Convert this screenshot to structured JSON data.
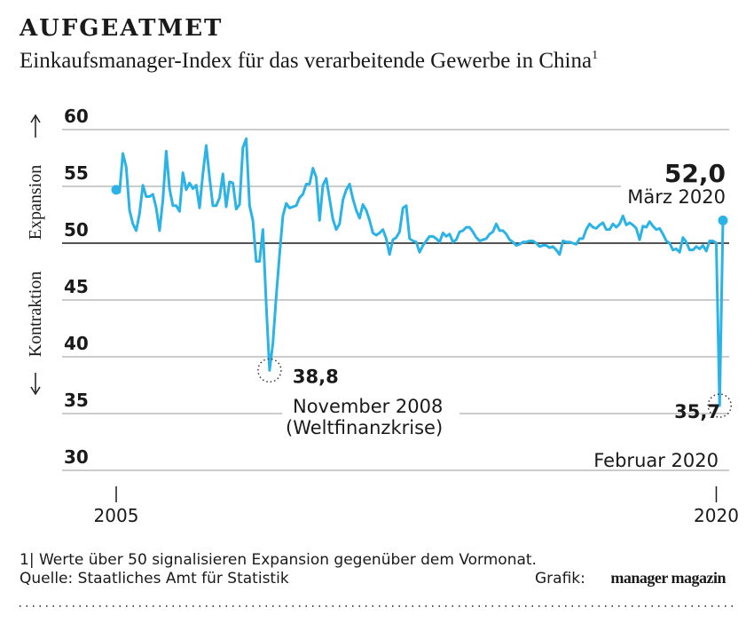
{
  "chart_data": {
    "type": "line",
    "title": "AUFGEATMET",
    "subtitle": "Einkaufsmanager-Index für das verarbeitende Gewerbe in China",
    "subtitle_note": "1",
    "y_labels": [
      "Expansion",
      "Kontraktion"
    ],
    "categories": [
      "2005",
      null,
      null,
      null,
      null,
      null,
      null,
      null,
      null,
      null,
      null,
      null,
      null,
      null,
      null,
      null,
      null,
      null,
      null,
      null,
      null,
      null,
      null,
      null,
      null,
      null,
      null,
      null,
      null,
      null,
      null,
      null,
      null,
      null,
      null,
      null,
      null,
      null,
      null,
      null,
      null,
      null,
      null,
      null,
      null,
      null,
      null,
      null,
      null,
      null,
      null,
      null,
      null,
      null,
      null,
      null,
      null,
      null,
      null,
      null,
      null,
      null,
      null,
      null,
      null,
      null,
      null,
      null,
      null,
      null,
      null,
      null,
      null,
      null,
      null,
      null,
      null,
      null,
      null,
      null,
      null,
      null,
      null,
      null,
      null,
      null,
      null,
      null,
      null,
      null,
      null,
      null,
      null,
      null,
      null,
      null,
      null,
      null,
      null,
      null,
      null,
      null,
      null,
      null,
      null,
      null,
      null,
      null,
      null,
      null,
      null,
      null,
      null,
      null,
      null,
      null,
      null,
      null,
      null,
      null,
      null,
      null,
      null,
      null,
      null,
      null,
      null,
      null,
      null,
      null,
      null,
      null,
      null,
      null,
      null,
      null,
      null,
      null,
      null,
      null,
      null,
      null,
      null,
      null,
      null,
      null,
      null,
      null,
      null,
      null,
      null,
      null,
      null,
      null,
      null,
      null,
      null,
      null,
      null,
      null,
      null,
      null,
      null,
      null,
      null,
      null,
      null,
      null,
      null,
      null,
      null,
      null,
      null,
      null,
      null,
      null,
      null,
      null,
      null,
      null,
      "2020",
      null,
      null
    ],
    "series": [
      {
        "name": "Einkaufsmanager-Index",
        "color": "#2bb3e6",
        "values": [
          54.7,
          54.5,
          57.9,
          56.7,
          52.9,
          51.7,
          51.1,
          52.6,
          55.1,
          54.1,
          54.1,
          54.3,
          53.1,
          51.1,
          53.8,
          58.1,
          54.8,
          53.3,
          53.3,
          52.8,
          56.2,
          54.7,
          55.3,
          54.8,
          55.1,
          53.1,
          56.1,
          58.6,
          55.8,
          53.3,
          53.3,
          54.0,
          56.1,
          53.2,
          55.4,
          55.3,
          53.0,
          53.4,
          58.4,
          59.2,
          53.3,
          52.0,
          48.4,
          48.4,
          51.2,
          44.6,
          38.8,
          41.2,
          45.3,
          49.0,
          52.4,
          53.5,
          53.1,
          53.2,
          53.3,
          54.0,
          54.3,
          55.2,
          55.2,
          56.6,
          55.8,
          52.0,
          55.1,
          55.7,
          53.9,
          52.1,
          51.2,
          51.7,
          53.8,
          54.7,
          55.2,
          53.9,
          52.9,
          52.2,
          53.4,
          52.9,
          52.0,
          50.9,
          50.7,
          50.9,
          51.2,
          50.4,
          49.0,
          50.3,
          50.5,
          51.0,
          53.1,
          53.3,
          50.4,
          50.2,
          50.1,
          49.2,
          49.8,
          50.2,
          50.6,
          50.6,
          50.4,
          50.1,
          50.9,
          50.6,
          50.8,
          50.1,
          50.3,
          51.0,
          51.1,
          51.4,
          51.4,
          51.0,
          50.5,
          50.2,
          50.3,
          50.4,
          50.8,
          51.0,
          51.7,
          51.1,
          51.1,
          50.8,
          50.3,
          50.1,
          49.8,
          49.9,
          50.1,
          50.1,
          50.2,
          50.2,
          50.0,
          49.7,
          49.8,
          49.8,
          49.6,
          49.7,
          49.4,
          49.0,
          50.2,
          50.1,
          50.1,
          50.0,
          49.9,
          50.4,
          50.4,
          51.2,
          51.7,
          51.4,
          51.3,
          51.6,
          51.8,
          51.2,
          51.2,
          51.7,
          51.4,
          51.7,
          52.4,
          51.6,
          51.8,
          51.6,
          51.3,
          50.3,
          51.5,
          51.4,
          51.9,
          51.5,
          51.2,
          51.3,
          50.8,
          50.2,
          50.0,
          49.4,
          49.5,
          49.2,
          50.5,
          50.1,
          49.4,
          49.4,
          49.7,
          49.5,
          49.8,
          49.3,
          50.2,
          50.2,
          50.0,
          35.7,
          52.0
        ],
        "value_labels": [
          null,
          null,
          null,
          null,
          null,
          null,
          null,
          null,
          null,
          null,
          null,
          null,
          null,
          null,
          null,
          null,
          null,
          null,
          null,
          null,
          null,
          null,
          null,
          null,
          null,
          null,
          null,
          null,
          null,
          null,
          null,
          null,
          null,
          null,
          null,
          null,
          null,
          null,
          null,
          null,
          null,
          null,
          null,
          null,
          null,
          null,
          "38,8",
          null,
          null,
          null,
          null,
          null,
          null,
          null,
          null,
          null,
          null,
          null,
          null,
          null,
          null,
          null,
          null,
          null,
          null,
          null,
          null,
          null,
          null,
          null,
          null,
          null,
          null,
          null,
          null,
          null,
          null,
          null,
          null,
          null,
          null,
          null,
          null,
          null,
          null,
          null,
          null,
          null,
          null,
          null,
          null,
          null,
          null,
          null,
          null,
          null,
          null,
          null,
          null,
          null,
          null,
          null,
          null,
          null,
          null,
          null,
          null,
          null,
          null,
          null,
          null,
          null,
          null,
          null,
          null,
          null,
          null,
          null,
          null,
          null,
          null,
          null,
          null,
          null,
          null,
          null,
          null,
          null,
          null,
          null,
          null,
          null,
          null,
          null,
          null,
          null,
          null,
          null,
          null,
          null,
          null,
          null,
          null,
          null,
          null,
          null,
          null,
          null,
          null,
          null,
          null,
          null,
          null,
          null,
          null,
          null,
          null,
          null,
          null,
          null,
          null,
          null,
          null,
          null,
          null,
          null,
          null,
          null,
          null,
          null,
          null,
          null,
          null,
          null,
          null,
          null,
          null,
          null,
          null,
          null,
          null,
          "35,7",
          "52,0"
        ]
      }
    ],
    "annotations": [
      "März 2020",
      "November 2008",
      "(Weltfinanzkrise)",
      "Februar 2020"
    ],
    "reference_line": 50,
    "ylim": [
      30,
      60
    ],
    "yticks": [
      30,
      35,
      40,
      45,
      50,
      55,
      60
    ],
    "grid": true,
    "footnote": "1| Werte über 50 signalisieren Expansion gegenüber dem Vormonat.",
    "source": "Quelle: Staatliches Amt für Statistik",
    "credit_label": "Grafik:",
    "credit": "manager magazin"
  }
}
